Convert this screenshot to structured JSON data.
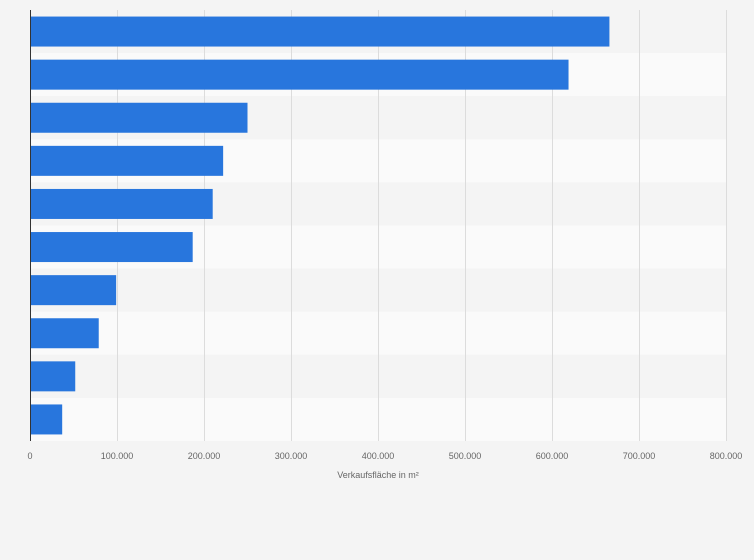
{
  "chart_data": {
    "type": "bar",
    "orientation": "horizontal",
    "title": "",
    "xlabel": "Verkaufsfläche in m²",
    "ylabel": "",
    "categories": [
      "",
      "",
      "",
      "",
      "",
      "",
      "",
      "",
      "",
      ""
    ],
    "values": [
      666000,
      619000,
      250000,
      222000,
      210000,
      187000,
      99000,
      79000,
      52000,
      37000
    ],
    "xlim": [
      0,
      800000
    ],
    "x_ticks": [
      0,
      100000,
      200000,
      300000,
      400000,
      500000,
      600000,
      700000,
      800000
    ],
    "x_tick_labels": [
      "0",
      "100.000",
      "200.000",
      "300.000",
      "400.000",
      "500.000",
      "600.000",
      "700.000",
      "800.000"
    ],
    "grid": true,
    "bar_color": "#2876dd",
    "band_colors": [
      "#f4f4f4",
      "#fafafa"
    ],
    "grid_color": "#dcdcdc",
    "axis_color": "#333333"
  }
}
